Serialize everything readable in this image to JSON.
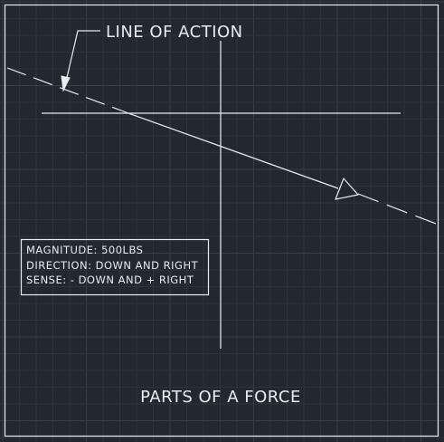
{
  "diagram": {
    "title": "PARTS OF A FORCE",
    "leader_label": "LINE OF ACTION",
    "info_box": {
      "lines": [
        "MAGNITUDE: 500LBS",
        "DIRECTION: DOWN AND RIGHT",
        "SENSE: - DOWN AND + RIGHT"
      ]
    }
  },
  "colors": {
    "background": "#212830",
    "grid_minor": "#2b333d",
    "grid_major": "#34404c",
    "linework": "#e8ecef"
  }
}
